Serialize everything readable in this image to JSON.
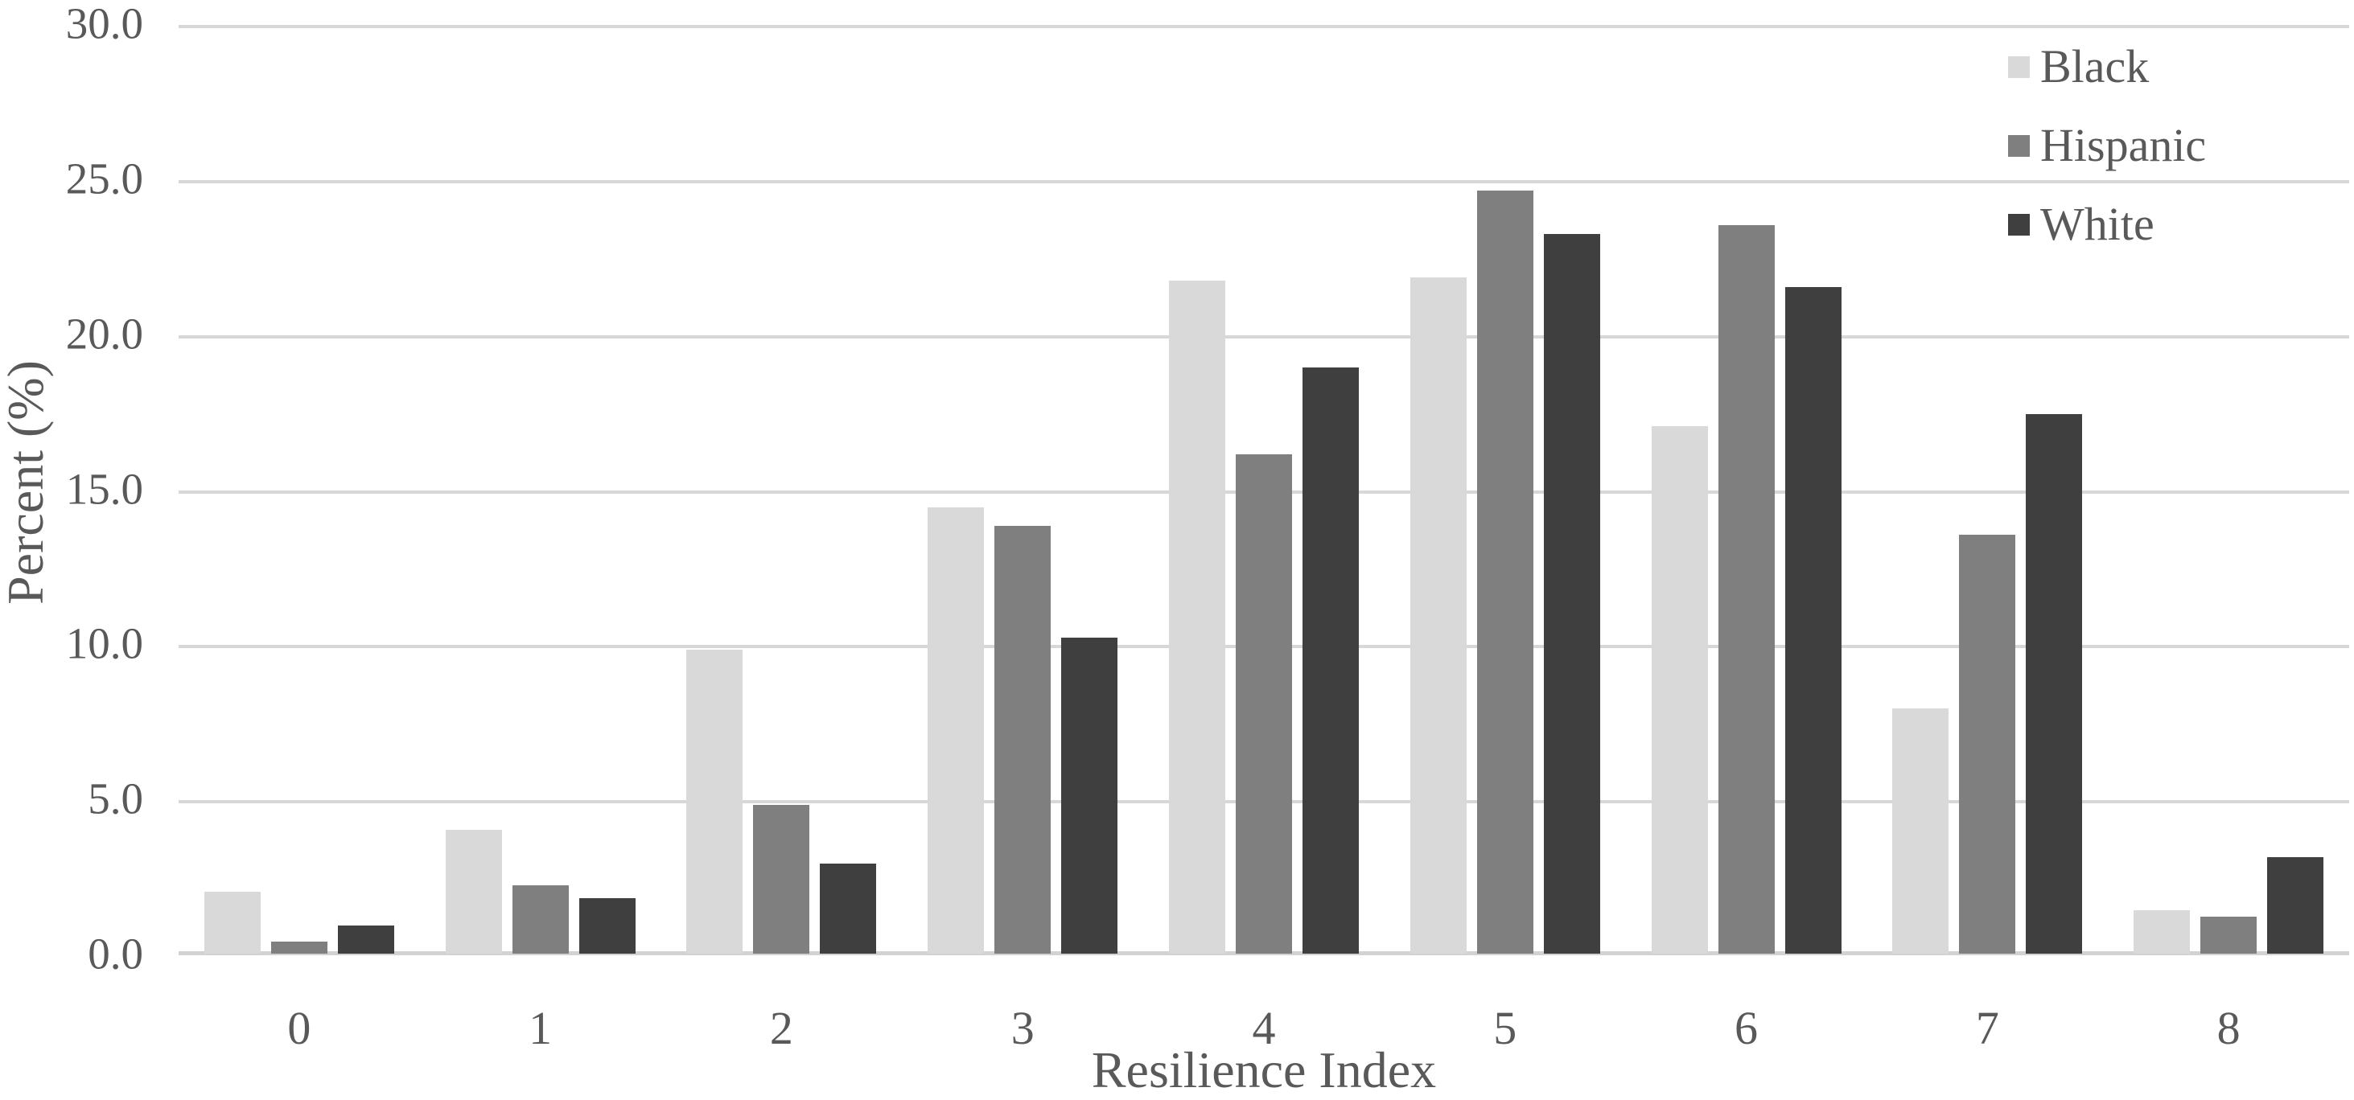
{
  "chart_data": {
    "type": "bar",
    "title": "",
    "xlabel": "Resilience Index",
    "ylabel": "Percent (%)",
    "categories": [
      "0",
      "1",
      "2",
      "3",
      "4",
      "5",
      "6",
      "7",
      "8"
    ],
    "series": [
      {
        "name": "Black",
        "color": "#d9d9d9",
        "values": [
          2.0,
          4.0,
          9.8,
          14.4,
          21.7,
          21.8,
          17.0,
          7.9,
          1.4
        ]
      },
      {
        "name": "Hispanic",
        "color": "#7f7f7f",
        "values": [
          0.4,
          2.2,
          4.8,
          13.8,
          16.1,
          24.6,
          23.5,
          13.5,
          1.2
        ]
      },
      {
        "name": "White",
        "color": "#3f3f3f",
        "values": [
          0.9,
          1.8,
          2.9,
          10.2,
          18.9,
          23.2,
          21.5,
          17.4,
          3.1
        ]
      }
    ],
    "y_ticks": [
      "30.0",
      "25.0",
      "20.0",
      "15.0",
      "10.0",
      "5.0",
      "0.0"
    ],
    "ylim": [
      0,
      30
    ],
    "y_step": 5,
    "grid": true,
    "legend_position": "top-right",
    "colors": {
      "grid": "#d7d7d7",
      "axis_line": "#d2d2d2",
      "text": "#595959",
      "background": "#ffffff"
    }
  }
}
